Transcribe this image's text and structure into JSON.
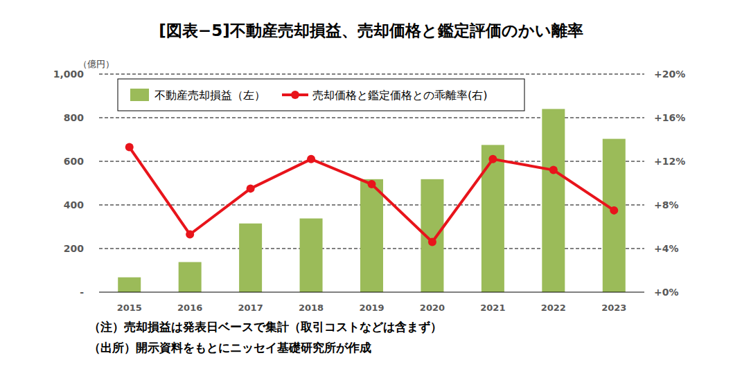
{
  "chart_data": {
    "type": "bar",
    "title": "[図表−5]不動産売却損益、売却価格と鑑定評価のかい離率",
    "y_label": "（億円）",
    "notes": [
      "（注）売却損益は発表日ベースで集計（取引コストなどは含まず）",
      "（出所）開示資料をもとにニッセイ基礎研究所が作成"
    ],
    "categories": [
      "2015",
      "2016",
      "2017",
      "2018",
      "2019",
      "2020",
      "2021",
      "2022",
      "2023"
    ],
    "series": [
      {
        "name": "不動産売却損益（左）",
        "type": "bar",
        "color": "#9bbb59",
        "values": [
          68,
          138,
          315,
          338,
          518,
          518,
          675,
          840,
          703
        ]
      },
      {
        "name": "売却価格と鑑定価格との乖離率(右)",
        "type": "line",
        "color": "#e8141b",
        "marker": "circle",
        "axis": "y2",
        "values": [
          13.3,
          5.3,
          9.5,
          12.2,
          9.9,
          4.6,
          12.2,
          11.2,
          7.5
        ]
      }
    ],
    "ylim": [
      0,
      1000
    ],
    "yticks": [
      {
        "value": 0,
        "label": "-"
      },
      200,
      400,
      600,
      800,
      {
        "value": 1000,
        "label": "1,000"
      }
    ],
    "y2lim": [
      0,
      20
    ],
    "y2ticks": [
      {
        "value": 0,
        "label": "+0%"
      },
      {
        "value": 4,
        "label": "+4%"
      },
      {
        "value": 8,
        "label": "+8%"
      },
      {
        "value": 12,
        "label": "+12%"
      },
      {
        "value": 16,
        "label": "+16%"
      },
      {
        "value": 20,
        "label": "+20%"
      }
    ],
    "grid": true,
    "legend": "top"
  }
}
